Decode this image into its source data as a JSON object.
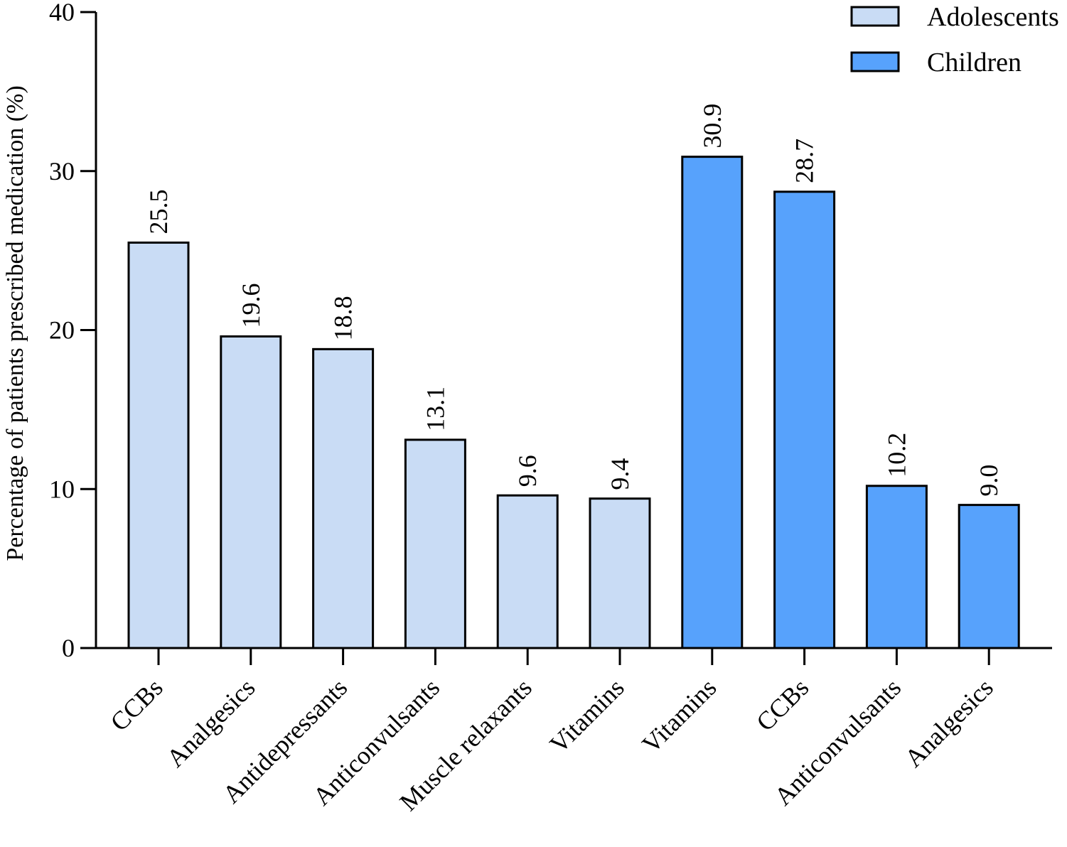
{
  "chart_data": {
    "type": "bar",
    "title": "",
    "xlabel": "",
    "ylabel": "Percentage of patients prescribed medication (%)",
    "ylim": [
      0,
      40
    ],
    "yticks": [
      0,
      10,
      20,
      30,
      40
    ],
    "grid": false,
    "legend_position": "top-right",
    "series": [
      {
        "name": "Adolescents",
        "color": "#c9dcf5",
        "categories": [
          "CCBs",
          "Analgesics",
          "Antidepressants",
          "Anticonvulsants",
          "Muscle relaxants",
          "Vitamins"
        ],
        "values": [
          25.5,
          19.6,
          18.8,
          13.1,
          9.6,
          9.4
        ],
        "labels": [
          "25.5",
          "19.6",
          "18.8",
          "13.1",
          "9.6",
          "9.4"
        ]
      },
      {
        "name": "Children",
        "color": "#57a2fc",
        "categories": [
          "Vitamins",
          "CCBs",
          "Anticonvulsants",
          "Analgesics"
        ],
        "values": [
          30.9,
          28.7,
          10.2,
          9.0
        ],
        "labels": [
          "30.9",
          "28.7",
          "10.2",
          "9.0"
        ]
      }
    ]
  }
}
